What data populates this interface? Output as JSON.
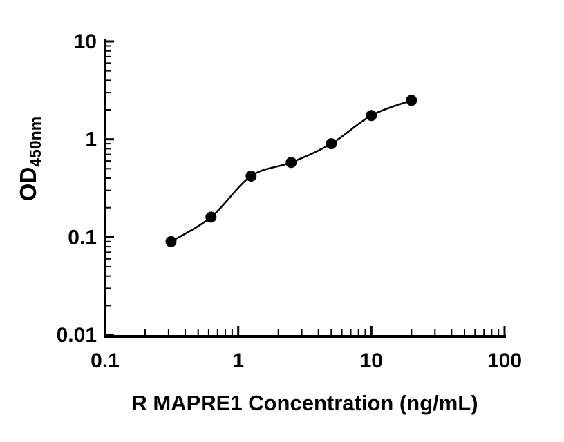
{
  "figure": {
    "background": "#ffffff",
    "axis_color": "#000000"
  },
  "chart_data": {
    "type": "scatter",
    "title": "",
    "xlabel": "R MAPRE1 Concentration (ng/mL)",
    "ylabel_main": "OD",
    "ylabel_sub": "450nm",
    "x_scale": "log",
    "y_scale": "log",
    "xlim": [
      0.1,
      100
    ],
    "ylim": [
      0.01,
      10
    ],
    "grid": false,
    "legend": "none",
    "fit_curve": true,
    "x_ticks": [
      {
        "value": 0.1,
        "label": "0.1"
      },
      {
        "value": 1,
        "label": "1"
      },
      {
        "value": 10,
        "label": "10"
      },
      {
        "value": 100,
        "label": "100"
      }
    ],
    "y_ticks": [
      {
        "value": 0.01,
        "label": "0.01"
      },
      {
        "value": 0.1,
        "label": "0.1"
      },
      {
        "value": 1,
        "label": "1"
      },
      {
        "value": 10,
        "label": "10"
      }
    ],
    "series": [
      {
        "name": "R MAPRE1 standard curve",
        "marker": "filled-circle",
        "marker_color": "#000000",
        "line_color": "#000000",
        "x": [
          0.313,
          0.625,
          1.25,
          2.5,
          5,
          10,
          20
        ],
        "y": [
          0.09,
          0.16,
          0.42,
          0.58,
          0.9,
          1.75,
          2.5
        ]
      }
    ]
  }
}
